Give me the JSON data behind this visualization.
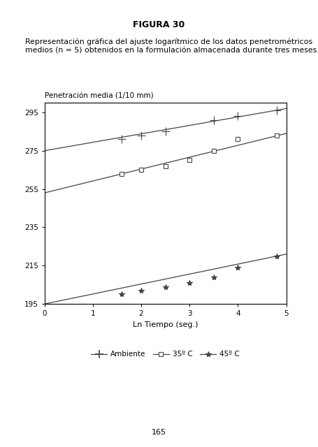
{
  "title": "FIGURA 30",
  "subtitle_line1": "Representación gráfica del ajuste logarítmico de los datos penetrométricos",
  "subtitle_line2": "medios (n = 5) obtenidos en la formulación almacenada durante tres meses.",
  "ylabel": "Penetración media (1/10 mm)",
  "xlabel": "Ln Tiempo (seg.)",
  "xlim": [
    0,
    5
  ],
  "ylim": [
    195,
    300
  ],
  "yticks": [
    195,
    215,
    235,
    255,
    275,
    295
  ],
  "xticks": [
    0,
    1,
    2,
    3,
    4,
    5
  ],
  "series_Ambiente": {
    "x_data": [
      1.6,
      2.0,
      2.5,
      3.5,
      4.0,
      4.8
    ],
    "y_data": [
      281,
      283,
      285,
      291,
      293,
      296
    ],
    "fit_x": [
      0,
      5
    ],
    "fit_y": [
      275,
      297
    ],
    "marker": "+",
    "color": "#444444",
    "markersize": 9,
    "linewidth": 0.9,
    "label": "Ambiente"
  },
  "series_35": {
    "x_data": [
      1.6,
      2.0,
      2.5,
      3.0,
      3.5,
      4.0,
      4.8
    ],
    "y_data": [
      263,
      265,
      267,
      270,
      275,
      281,
      283
    ],
    "fit_x": [
      0,
      5
    ],
    "fit_y": [
      253,
      284
    ],
    "marker": "s",
    "color": "#444444",
    "markersize": 4,
    "linewidth": 0.9,
    "label": "35º C"
  },
  "series_45": {
    "x_data": [
      1.6,
      2.0,
      2.5,
      3.0,
      3.5,
      4.0,
      4.8
    ],
    "y_data": [
      200,
      202,
      204,
      206,
      209,
      214,
      220
    ],
    "fit_x": [
      0,
      5
    ],
    "fit_y": [
      195,
      221
    ],
    "marker": "*",
    "color": "#444444",
    "markersize": 6,
    "linewidth": 0.9,
    "label": "45º C"
  },
  "page_number": "165",
  "background_color": "#ffffff"
}
